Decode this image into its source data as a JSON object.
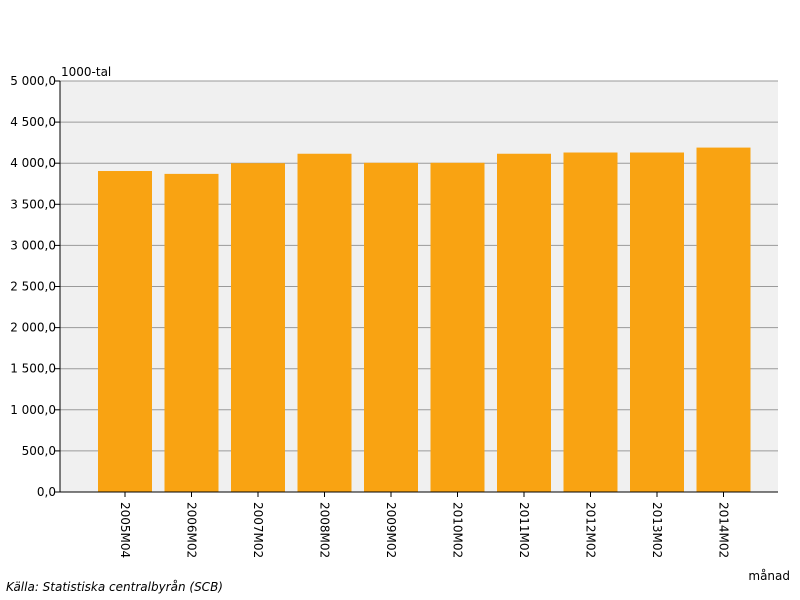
{
  "chart_data": {
    "type": "bar",
    "ylabel": "1000-tal",
    "xlabel": "månad",
    "categories": [
      "2005M04",
      "2006M02",
      "2007M02",
      "2008M02",
      "2009M02",
      "2010M02",
      "2011M02",
      "2012M02",
      "2013M02",
      "2014M02"
    ],
    "values": [
      3905,
      3870,
      4000,
      4115,
      4005,
      4005,
      4115,
      4130,
      4130,
      4190
    ],
    "ylim": [
      0,
      5000
    ],
    "yticks": [
      0,
      500,
      1000,
      1500,
      2000,
      2500,
      3000,
      3500,
      4000,
      4500,
      5000
    ],
    "ytick_labels": [
      "0,0",
      "500,0",
      "1 000,0",
      "1 500,0",
      "2 000,0",
      "2 500,0",
      "3 000,0",
      "3 500,0",
      "4 000,0",
      "4 500,0",
      "5 000,0"
    ],
    "grid": true,
    "bar_color": "#f9a312",
    "plot_background": "#f0f0f0"
  },
  "source": "Källa: Statistiska centralbyrån (SCB)"
}
